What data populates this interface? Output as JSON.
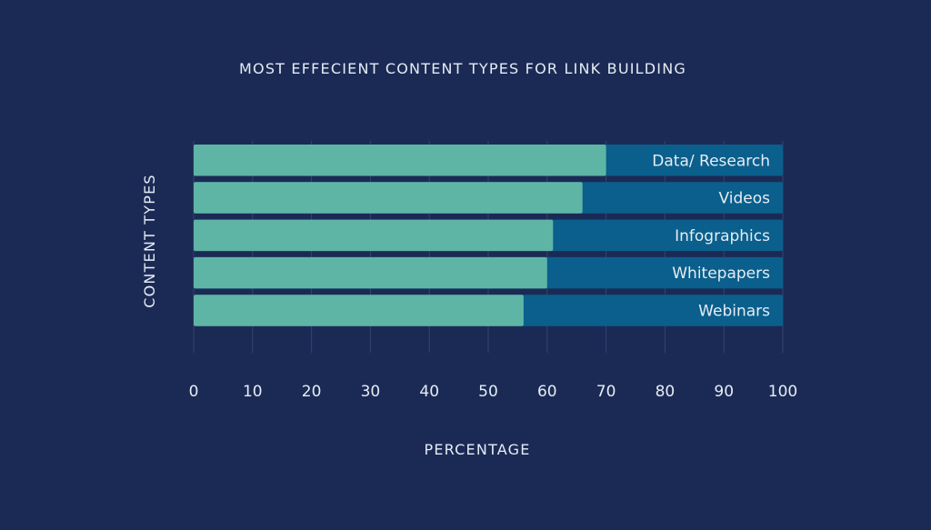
{
  "chart_data": {
    "type": "bar",
    "orientation": "horizontal",
    "stacked_background": true,
    "title": "MOST EFFECIENT CONTENT TYPES FOR LINK BUILDING",
    "xlabel": "PERCENTAGE",
    "ylabel": "CONTENT TYPES",
    "categories": [
      "Data/ Research",
      "Videos",
      "Infographics",
      "Whitepapers",
      "Webinars"
    ],
    "values": [
      70,
      66,
      61,
      60,
      56
    ],
    "xlim": [
      0,
      100
    ],
    "xticks": [
      "0",
      "10",
      "20",
      "30",
      "40",
      "50",
      "60",
      "70",
      "80",
      "90",
      "100"
    ],
    "grid": true,
    "colors": {
      "background": "#1b2a55",
      "value_bar": "#5fb5a5",
      "track_bar": "#0a5f8c",
      "grid": "#34446e",
      "text": "#e6ecf4"
    }
  }
}
